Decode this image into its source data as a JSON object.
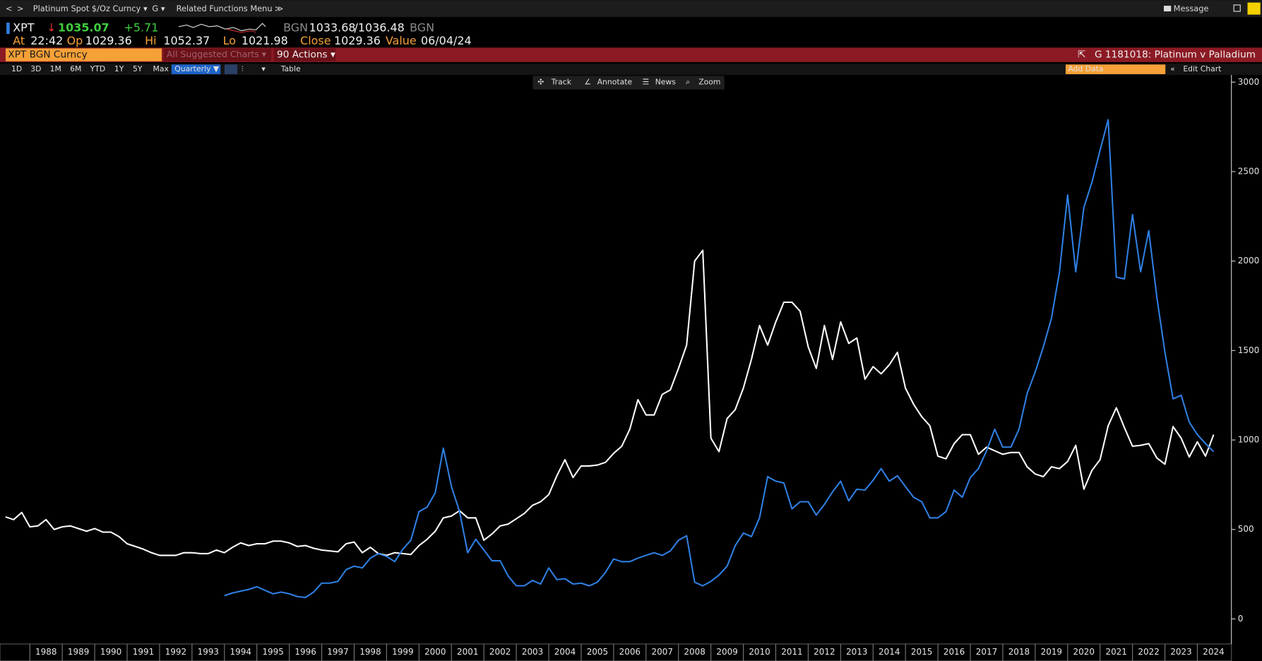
{
  "toolbar": {
    "security": "Platinum Spot $/Oz Curncy ▾",
    "menu_g": "G ▾",
    "related": "Related Functions Menu ≫",
    "message": "Message"
  },
  "quote": {
    "ticker": "XPT",
    "arrow": "↓",
    "last": "1035.07",
    "change": "+5.71",
    "src1": "BGN",
    "bid": "1033.68",
    "ask": "/1036.48",
    "src2": "BGN",
    "at_label": "At",
    "at": "22:42",
    "op_label": "Op",
    "op": "1029.36",
    "hi_label": "Hi",
    "hi": "1052.37",
    "lo_label": "Lo",
    "lo": "1021.98",
    "close_label": "Close",
    "close": "1029.36",
    "value_label": "Value",
    "value": "06/04/24"
  },
  "command_bar": {
    "security": "XPT BGN Curncy",
    "suggested": "All Suggested Charts ▾",
    "actions": "90 Actions ▾",
    "chart_id": "G 1181018: Platinum v Palladium"
  },
  "ranges": [
    "1D",
    "3D",
    "1M",
    "6M",
    "YTD",
    "1Y",
    "5Y",
    "Max"
  ],
  "frequency": "Quarterly ▼",
  "table": "Table",
  "add_data": "Add Data",
  "edit_chart": "Edit Chart",
  "tools": [
    "Track",
    "Annotate",
    "News",
    "Zoom"
  ],
  "chart_data": {
    "type": "line",
    "x": [
      1987.25,
      1987.5,
      1987.75,
      1988,
      1988.25,
      1988.5,
      1988.75,
      1989,
      1989.25,
      1989.5,
      1989.75,
      1990,
      1990.25,
      1990.5,
      1990.75,
      1991,
      1991.25,
      1991.5,
      1991.75,
      1992,
      1992.25,
      1992.5,
      1992.75,
      1993,
      1993.25,
      1993.5,
      1993.75,
      1994,
      1994.25,
      1994.5,
      1994.75,
      1995,
      1995.25,
      1995.5,
      1995.75,
      1996,
      1996.25,
      1996.5,
      1996.75,
      1997,
      1997.25,
      1997.5,
      1997.75,
      1998,
      1998.25,
      1998.5,
      1998.75,
      1999,
      1999.25,
      1999.5,
      1999.75,
      2000,
      2000.25,
      2000.5,
      2000.75,
      2001,
      2001.25,
      2001.5,
      2001.75,
      2002,
      2002.25,
      2002.5,
      2002.75,
      2003,
      2003.25,
      2003.5,
      2003.75,
      2004,
      2004.25,
      2004.5,
      2004.75,
      2005,
      2005.25,
      2005.5,
      2005.75,
      2006,
      2006.25,
      2006.5,
      2006.75,
      2007,
      2007.25,
      2007.5,
      2007.75,
      2008,
      2008.25,
      2008.5,
      2008.75,
      2009,
      2009.25,
      2009.5,
      2009.75,
      2010,
      2010.25,
      2010.5,
      2010.75,
      2011,
      2011.25,
      2011.5,
      2011.75,
      2012,
      2012.25,
      2012.5,
      2012.75,
      2013,
      2013.25,
      2013.5,
      2013.75,
      2014,
      2014.25,
      2014.5,
      2014.75,
      2015,
      2015.25,
      2015.5,
      2015.75,
      2016,
      2016.25,
      2016.5,
      2016.75,
      2017,
      2017.25,
      2017.5,
      2017.75,
      2018,
      2018.25,
      2018.5,
      2018.75,
      2019,
      2019.25,
      2019.5,
      2019.75,
      2020,
      2020.25,
      2020.5,
      2020.75,
      2021,
      2021.25,
      2021.5,
      2021.75,
      2022,
      2022.25,
      2022.5,
      2022.75,
      2023,
      2023.25,
      2023.5,
      2023.75,
      2024,
      2024.25,
      2024.5
    ],
    "series": [
      {
        "color": "#ffffff",
        "values": [
          570,
          555,
          595,
          515,
          520,
          555,
          500,
          515,
          520,
          505,
          490,
          505,
          485,
          485,
          460,
          420,
          405,
          390,
          370,
          355,
          355,
          355,
          370,
          370,
          365,
          365,
          385,
          370,
          400,
          425,
          410,
          420,
          420,
          435,
          435,
          425,
          405,
          410,
          395,
          385,
          380,
          375,
          420,
          430,
          370,
          400,
          365,
          355,
          370,
          365,
          360,
          410,
          445,
          490,
          565,
          575,
          605,
          565,
          565,
          440,
          475,
          520,
          530,
          560,
          590,
          635,
          655,
          695,
          800,
          890,
          790,
          855,
          855,
          860,
          875,
          925,
          965,
          1060,
          1225,
          1140,
          1140,
          1255,
          1280,
          1400,
          1530,
          2000,
          2060,
          1010,
          935,
          1120,
          1170,
          1290,
          1450,
          1640,
          1530,
          1660,
          1770,
          1770,
          1720,
          1520,
          1400,
          1640,
          1450,
          1660,
          1540,
          1570,
          1340,
          1410,
          1370,
          1420,
          1490,
          1290,
          1200,
          1130,
          1080,
          910,
          895,
          980,
          1030,
          1030,
          920,
          960,
          940,
          920,
          930,
          930,
          850,
          810,
          795,
          850,
          840,
          880,
          970,
          725,
          830,
          890,
          1080,
          1180,
          1070,
          965,
          970,
          980,
          900,
          865,
          1075,
          1010,
          905,
          990,
          910,
          1030
        ]
      },
      {
        "color": "#2f80e4",
        "values": [
          null,
          null,
          null,
          null,
          null,
          null,
          null,
          null,
          null,
          null,
          null,
          null,
          null,
          null,
          null,
          null,
          null,
          null,
          null,
          null,
          null,
          null,
          null,
          null,
          null,
          null,
          null,
          130,
          145,
          155,
          165,
          180,
          160,
          140,
          150,
          140,
          125,
          120,
          150,
          200,
          200,
          210,
          275,
          295,
          285,
          340,
          365,
          350,
          320,
          390,
          440,
          600,
          625,
          705,
          955,
          740,
          600,
          370,
          445,
          385,
          325,
          325,
          240,
          185,
          185,
          215,
          195,
          285,
          220,
          225,
          195,
          200,
          185,
          205,
          260,
          335,
          320,
          320,
          340,
          355,
          370,
          355,
          380,
          440,
          465,
          205,
          185,
          210,
          245,
          295,
          410,
          480,
          460,
          565,
          795,
          770,
          760,
          615,
          655,
          655,
          580,
          640,
          710,
          770,
          660,
          725,
          720,
          775,
          840,
          770,
          800,
          740,
          680,
          655,
          565,
          565,
          600,
          720,
          680,
          790,
          840,
          940,
          1060,
          960,
          960,
          1060,
          1260,
          1380,
          1520,
          1680,
          1940,
          2370,
          1940,
          2300,
          2440,
          2620,
          2790,
          1910,
          1900,
          2260,
          1940,
          2170,
          1800,
          1490,
          1230,
          1250,
          1100,
          1030,
          980,
          935
        ]
      }
    ],
    "xlim": [
      1987.08,
      2025
    ],
    "xticks": [
      1988,
      1989,
      1990,
      1991,
      1992,
      1993,
      1994,
      1995,
      1996,
      1997,
      1998,
      1999,
      2000,
      2001,
      2002,
      2003,
      2004,
      2005,
      2006,
      2007,
      2008,
      2009,
      2010,
      2011,
      2012,
      2013,
      2014,
      2015,
      2016,
      2017,
      2018,
      2019,
      2020,
      2021,
      2022,
      2023,
      2024
    ],
    "ylim": [
      -140,
      3040
    ],
    "yticks": [
      0,
      500,
      1000,
      1500,
      2000,
      2500,
      3000
    ],
    "grid": false
  }
}
